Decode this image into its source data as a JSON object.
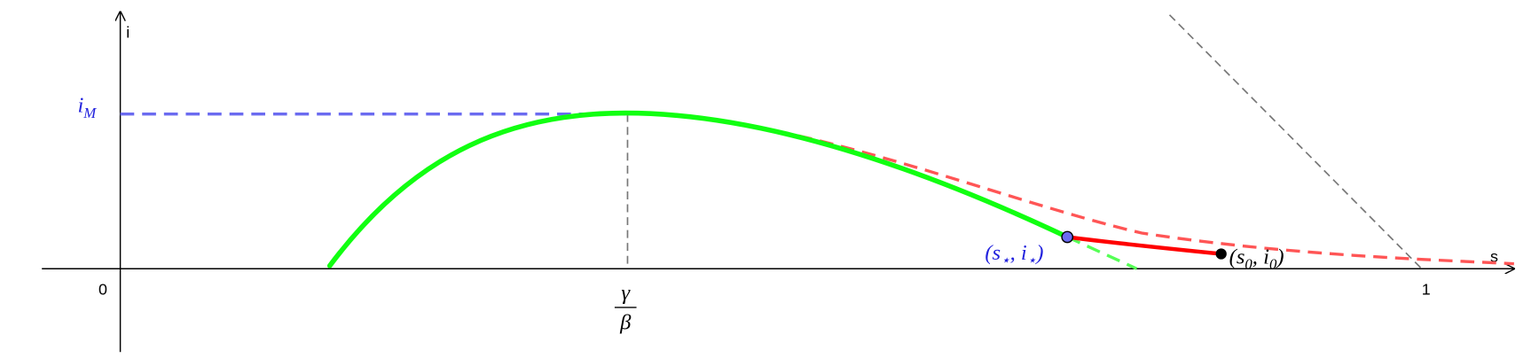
{
  "axes": {
    "x_label": "s",
    "y_label": "i",
    "origin": "0",
    "one": "1"
  },
  "labels": {
    "gamma_beta": {
      "numerator": "γ",
      "denominator": "β"
    },
    "i_max": {
      "main": "i",
      "sub": "M"
    },
    "star_point": {
      "open": "(s",
      "sub1": "⋆",
      "mid": ", i",
      "sub2": "⋆",
      "close": ")"
    },
    "start_point": {
      "open": "(s",
      "sub1": "0",
      "mid": ", i",
      "sub2": "0",
      "close": ")"
    }
  }
}
